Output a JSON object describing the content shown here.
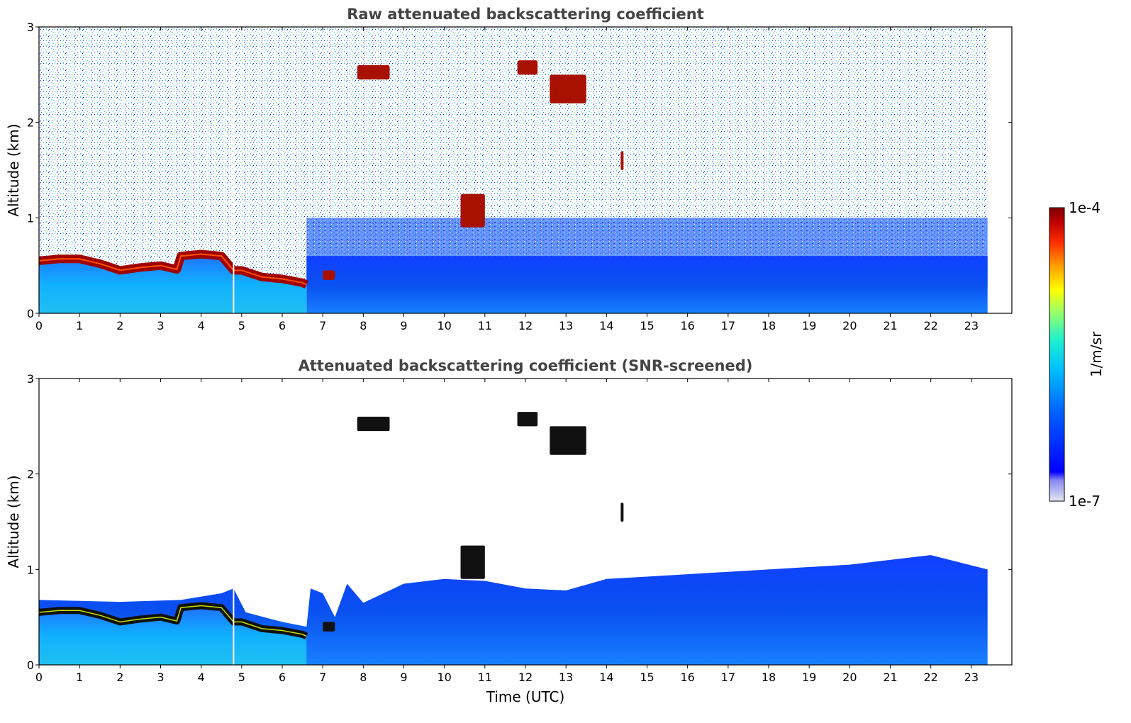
{
  "chart_data": [
    {
      "type": "heatmap",
      "title": "Raw attenuated backscattering coefficient",
      "xlabel": "",
      "ylabel": "Altitude (km)",
      "xlim": [
        0,
        24
      ],
      "ylim": [
        0,
        3
      ],
      "x_ticks": [
        "0",
        "1",
        "2",
        "3",
        "4",
        "5",
        "6",
        "7",
        "8",
        "9",
        "10",
        "11",
        "12",
        "13",
        "14",
        "15",
        "16",
        "17",
        "18",
        "19",
        "20",
        "21",
        "22",
        "23"
      ],
      "y_ticks": [
        "0",
        "1",
        "2",
        "3"
      ],
      "data_extent_x": [
        0,
        23.4
      ],
      "fog_layer_top_km": [
        {
          "x": 0.0,
          "y": 0.55
        },
        {
          "x": 0.5,
          "y": 0.57
        },
        {
          "x": 1.0,
          "y": 0.57
        },
        {
          "x": 1.5,
          "y": 0.52
        },
        {
          "x": 2.0,
          "y": 0.45
        },
        {
          "x": 2.5,
          "y": 0.48
        },
        {
          "x": 3.0,
          "y": 0.5
        },
        {
          "x": 3.4,
          "y": 0.46
        },
        {
          "x": 3.5,
          "y": 0.6
        },
        {
          "x": 4.0,
          "y": 0.62
        },
        {
          "x": 4.5,
          "y": 0.6
        },
        {
          "x": 4.8,
          "y": 0.45
        },
        {
          "x": 5.0,
          "y": 0.45
        },
        {
          "x": 5.5,
          "y": 0.38
        },
        {
          "x": 6.0,
          "y": 0.36
        },
        {
          "x": 6.5,
          "y": 0.32
        },
        {
          "x": 6.6,
          "y": 0.3
        }
      ],
      "high_backscatter_patches": [
        {
          "x": [
            7.85,
            8.65
          ],
          "y": [
            2.45,
            2.6
          ]
        },
        {
          "x": [
            11.8,
            12.3
          ],
          "y": [
            2.5,
            2.65
          ]
        },
        {
          "x": [
            12.6,
            13.5
          ],
          "y": [
            2.2,
            2.5
          ]
        },
        {
          "x": [
            10.4,
            11.0
          ],
          "y": [
            0.9,
            1.25
          ]
        },
        {
          "x": [
            7.0,
            7.3
          ],
          "y": [
            0.35,
            0.45
          ]
        },
        {
          "x": [
            14.35,
            14.42
          ],
          "y": [
            1.5,
            1.7
          ]
        }
      ]
    },
    {
      "type": "heatmap",
      "title": "Attenuated backscattering coefficient (SNR-screened)",
      "xlabel": "Time (UTC)",
      "ylabel": "Altitude (km)",
      "xlim": [
        0,
        24
      ],
      "ylim": [
        0,
        3
      ],
      "x_ticks": [
        "0",
        "1",
        "2",
        "3",
        "4",
        "5",
        "6",
        "7",
        "8",
        "9",
        "10",
        "11",
        "12",
        "13",
        "14",
        "15",
        "16",
        "17",
        "18",
        "19",
        "20",
        "21",
        "22",
        "23"
      ],
      "y_ticks": [
        "0",
        "1",
        "2",
        "3"
      ],
      "data_extent_x": [
        0,
        23.4
      ],
      "screened_signal_top_km": [
        {
          "x": 0.0,
          "y": 0.68
        },
        {
          "x": 2.0,
          "y": 0.66
        },
        {
          "x": 3.5,
          "y": 0.68
        },
        {
          "x": 4.5,
          "y": 0.75
        },
        {
          "x": 4.8,
          "y": 0.8
        },
        {
          "x": 5.1,
          "y": 0.55
        },
        {
          "x": 6.0,
          "y": 0.45
        },
        {
          "x": 6.6,
          "y": 0.4
        },
        {
          "x": 6.7,
          "y": 0.8
        },
        {
          "x": 7.0,
          "y": 0.75
        },
        {
          "x": 7.3,
          "y": 0.5
        },
        {
          "x": 7.6,
          "y": 0.85
        },
        {
          "x": 8.0,
          "y": 0.65
        },
        {
          "x": 8.5,
          "y": 0.75
        },
        {
          "x": 9.0,
          "y": 0.85
        },
        {
          "x": 10.0,
          "y": 0.9
        },
        {
          "x": 11.0,
          "y": 0.88
        },
        {
          "x": 12.0,
          "y": 0.8
        },
        {
          "x": 13.0,
          "y": 0.78
        },
        {
          "x": 14.0,
          "y": 0.9
        },
        {
          "x": 16.0,
          "y": 0.95
        },
        {
          "x": 18.0,
          "y": 1.0
        },
        {
          "x": 20.0,
          "y": 1.05
        },
        {
          "x": 22.0,
          "y": 1.15
        },
        {
          "x": 23.4,
          "y": 1.0
        }
      ]
    }
  ],
  "colorbar": {
    "label": "1/m/sr",
    "min_label": "1e-7",
    "max_label": "1e-4",
    "scale": "log",
    "colormap": [
      "#e6e6f5",
      "#0000ff",
      "#0050ff",
      "#00a0ff",
      "#00e0ff",
      "#40ffc0",
      "#a0ff60",
      "#ffff00",
      "#ffa000",
      "#ff4000",
      "#d00000",
      "#800000"
    ]
  }
}
